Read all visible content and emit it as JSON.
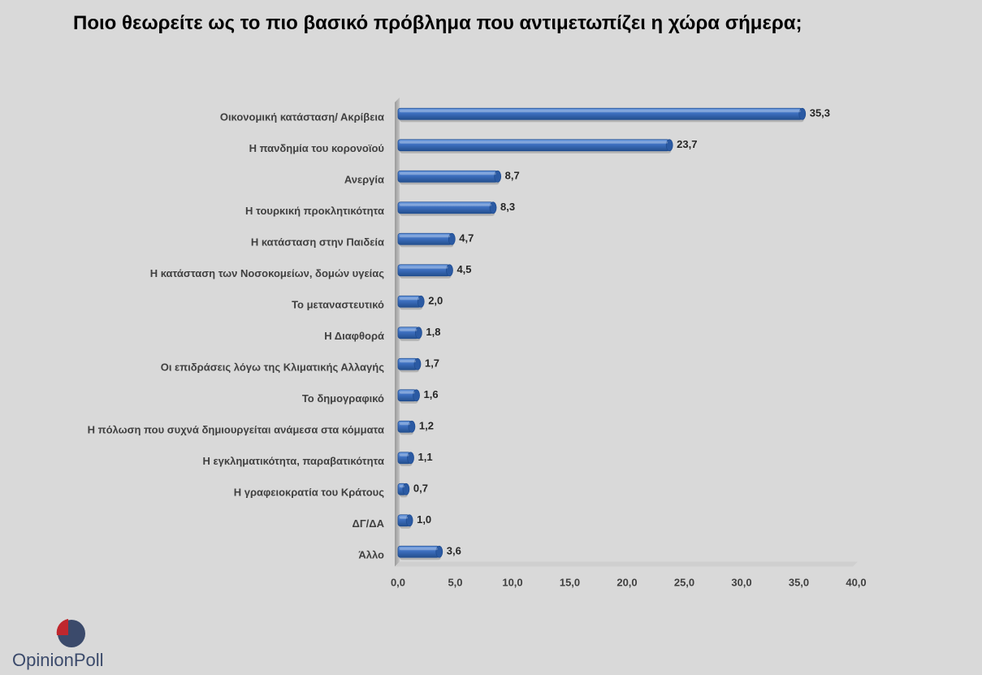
{
  "title": "Ποιο θεωρείτε ως το πιο βασικό πρόβλημα που αντιμετωπίζει η χώρα σήμερα;",
  "logo": {
    "part1": "Opinion",
    "part2": "Poll"
  },
  "colors": {
    "bar": "#3d6fbf",
    "bar_dark": "#1f4c91",
    "bar_light": "#7aa3e0",
    "background": "#d9d9d9"
  },
  "chart_data": {
    "type": "bar",
    "orientation": "horizontal",
    "title": "Ποιο θεωρείτε ως το πιο βασικό πρόβλημα που αντιμετωπίζει η χώρα σήμερα;",
    "categories": [
      "Οικονομική κατάσταση/ Ακρίβεια",
      "Η πανδημία του κορονοϊού",
      "Ανεργία",
      "Η τουρκική προκλητικότητα",
      "Η κατάσταση στην Παιδεία",
      "Η κατάσταση των Νοσοκομείων, δομών υγείας",
      "Το μεταναστευτικό",
      "Η Διαφθορά",
      "Οι επιδράσεις λόγω της Κλιματικής Αλλαγής",
      "Το δημογραφικό",
      "Η πόλωση που συχνά δημιουργείται ανάμεσα στα κόμματα",
      "Η εγκληματικότητα, παραβατικότητα",
      "Η γραφειοκρατία του Κράτους",
      "ΔΓ/ΔΑ",
      "Άλλο"
    ],
    "values": [
      35.3,
      23.7,
      8.7,
      8.3,
      4.7,
      4.5,
      2.0,
      1.8,
      1.7,
      1.6,
      1.2,
      1.1,
      0.7,
      1.0,
      3.6
    ],
    "value_labels": [
      "35,3",
      "23,7",
      "8,7",
      "8,3",
      "4,7",
      "4,5",
      "2,0",
      "1,8",
      "1,7",
      "1,6",
      "1,2",
      "1,1",
      "0,7",
      "1,0",
      "3,6"
    ],
    "xlim": [
      0,
      40
    ],
    "ticks": [
      0,
      5,
      10,
      15,
      20,
      25,
      30,
      35,
      40
    ],
    "tick_labels": [
      "0,0",
      "5,0",
      "10,0",
      "15,0",
      "20,0",
      "25,0",
      "30,0",
      "35,0",
      "40,0"
    ],
    "xlabel": "",
    "ylabel": "",
    "grid": false,
    "legend": "none"
  }
}
